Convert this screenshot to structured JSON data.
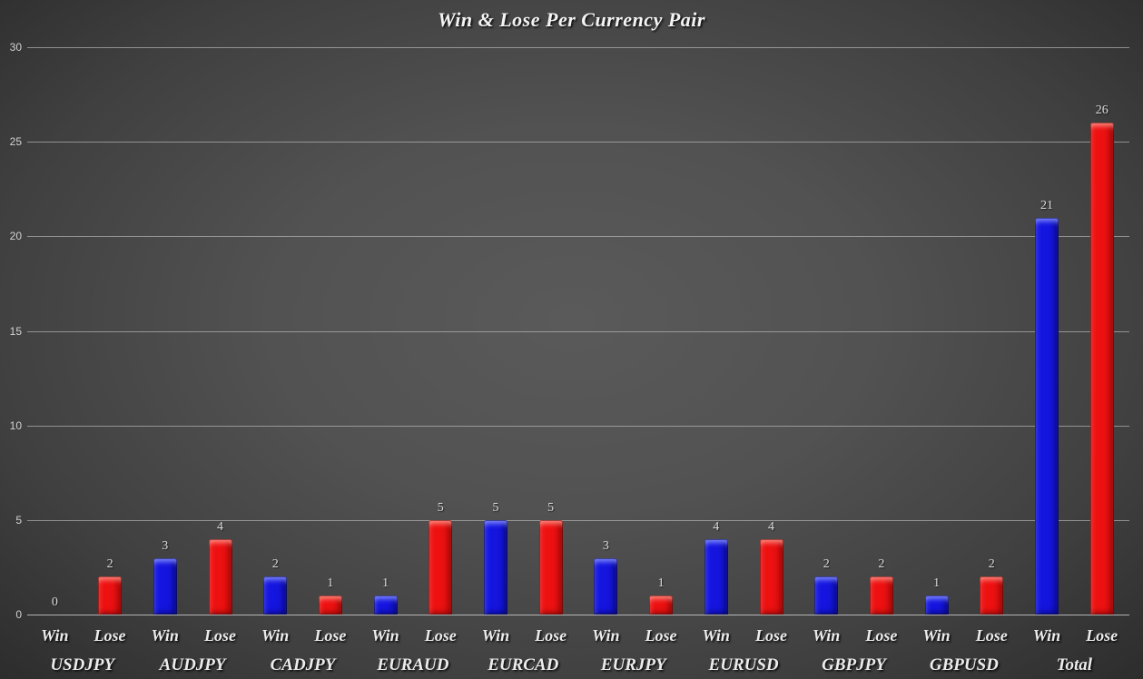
{
  "chart_data": {
    "type": "bar",
    "title": "Win & Lose Per Currency Pair",
    "categories": [
      "USDJPY",
      "AUDJPY",
      "CADJPY",
      "EURAUD",
      "EURCAD",
      "EURJPY",
      "EURUSD",
      "GBPJPY",
      "GBPUSD",
      "Total"
    ],
    "series": [
      {
        "name": "Win",
        "color": "#1515e0",
        "values": [
          0,
          3,
          2,
          1,
          5,
          3,
          4,
          2,
          1,
          21
        ]
      },
      {
        "name": "Lose",
        "color": "#ee1111",
        "values": [
          2,
          4,
          1,
          5,
          5,
          1,
          4,
          2,
          2,
          26
        ]
      }
    ],
    "sub_axis_labels": [
      "Win",
      "Lose"
    ],
    "ylabel": "",
    "xlabel": "",
    "ylim": [
      0,
      30
    ],
    "ytick_step": 5,
    "yticks": [
      "0",
      "5",
      "10",
      "15",
      "20",
      "25",
      "30"
    ],
    "grid": "horizontal",
    "legend": "none",
    "bar_value_labels": true,
    "colors": {
      "background_center": "#5a5a5a",
      "background_edge": "#282828",
      "gridline": "#c3c3c3",
      "axis_tick_text": "#d2d2d2",
      "value_label_text": "#dcdcdc",
      "category_text": "#ececec",
      "title_text": "#f4f4f4"
    }
  }
}
